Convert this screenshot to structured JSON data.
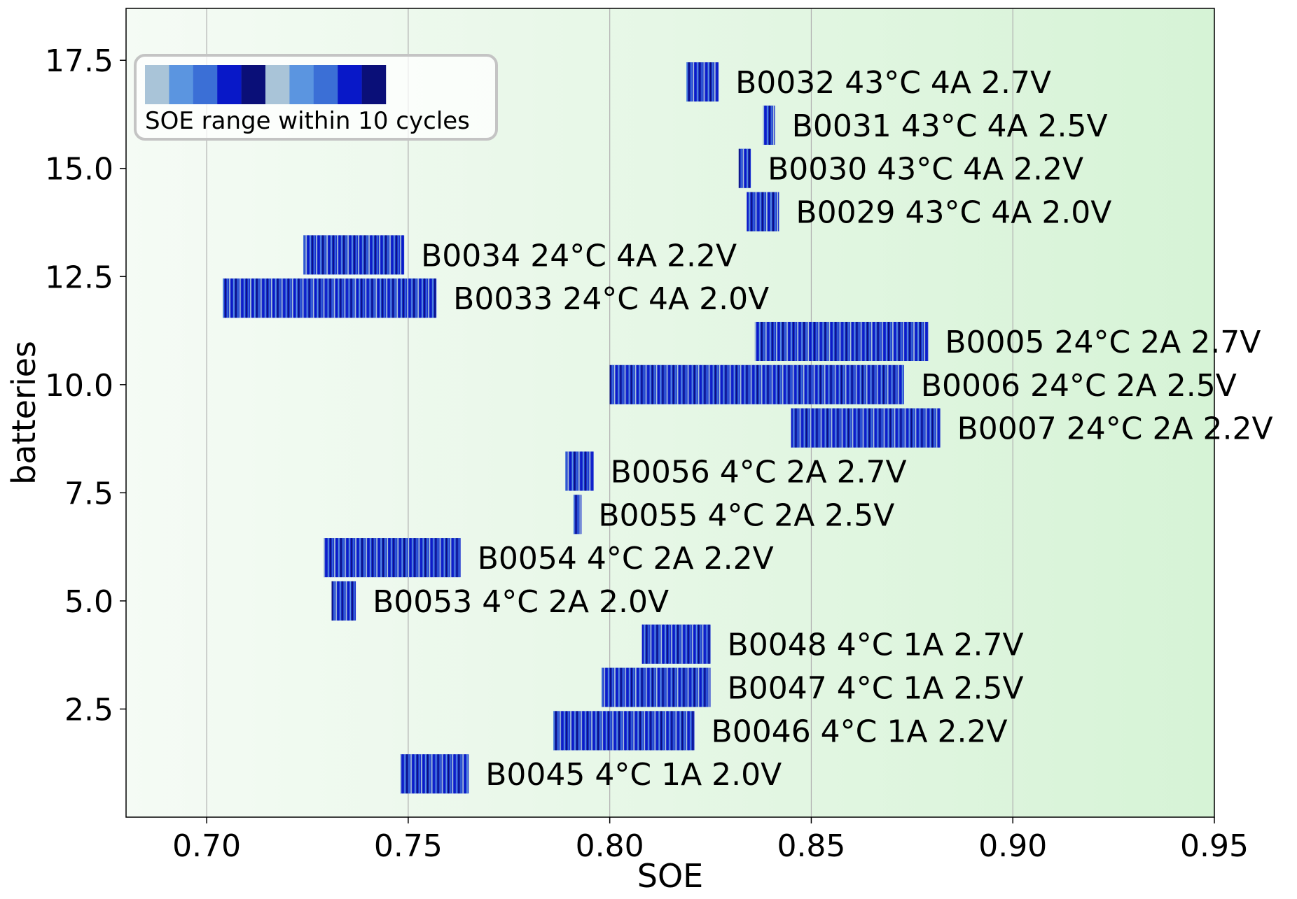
{
  "chart_data": {
    "type": "bar",
    "orientation": "horizontal-range",
    "xlabel": "SOE",
    "ylabel": "batteries",
    "xlim": [
      0.68,
      0.95
    ],
    "ylim": [
      0,
      18.7
    ],
    "xticks": [
      0.7,
      0.75,
      0.8,
      0.85,
      0.9,
      0.95
    ],
    "xtick_labels": [
      "0.70",
      "0.75",
      "0.80",
      "0.85",
      "0.90",
      "0.95"
    ],
    "yticks": [
      2.5,
      5.0,
      7.5,
      10.0,
      12.5,
      15.0,
      17.5
    ],
    "ytick_labels": [
      "2.5",
      "5.0",
      "7.5",
      "10.0",
      "12.5",
      "15.0",
      "17.5"
    ],
    "grid": "x",
    "legend": {
      "label": "SOE range within 10 cycles",
      "placement": "top-left",
      "swatches": [
        "#a9c4d8",
        "#5b95e0",
        "#3b6fd6",
        "#0818c8",
        "#0a0f78",
        "#a9c4d8",
        "#5b95e0",
        "#3b6fd6",
        "#0818c8",
        "#0a0f78"
      ]
    },
    "colors": {
      "background_start": "#f5fbf5",
      "background_end": "#d6f3d6",
      "bar_base": "#1a2fcf",
      "grid": "#b0b0b0"
    },
    "series": [
      {
        "name": "B0045 4°C 1A 2.0V",
        "y": 1,
        "min": 0.748,
        "max": 0.765
      },
      {
        "name": "B0046 4°C 1A 2.2V",
        "y": 2,
        "min": 0.786,
        "max": 0.821
      },
      {
        "name": "B0047 4°C 1A 2.5V",
        "y": 3,
        "min": 0.798,
        "max": 0.825
      },
      {
        "name": "B0048 4°C 1A 2.7V",
        "y": 4,
        "min": 0.808,
        "max": 0.825
      },
      {
        "name": "B0053 4°C 2A 2.0V",
        "y": 5,
        "min": 0.731,
        "max": 0.737
      },
      {
        "name": "B0054 4°C 2A 2.2V",
        "y": 6,
        "min": 0.729,
        "max": 0.763
      },
      {
        "name": "B0055 4°C 2A 2.5V",
        "y": 7,
        "min": 0.791,
        "max": 0.793
      },
      {
        "name": "B0056 4°C 2A 2.7V",
        "y": 8,
        "min": 0.789,
        "max": 0.796
      },
      {
        "name": "B0007 24°C 2A 2.2V",
        "y": 9,
        "min": 0.845,
        "max": 0.882
      },
      {
        "name": "B0006 24°C 2A 2.5V",
        "y": 10,
        "min": 0.8,
        "max": 0.873
      },
      {
        "name": "B0005 24°C 2A 2.7V",
        "y": 11,
        "min": 0.836,
        "max": 0.879
      },
      {
        "name": "B0033 24°C 4A 2.0V",
        "y": 12,
        "min": 0.704,
        "max": 0.757
      },
      {
        "name": "B0034 24°C 4A 2.2V",
        "y": 13,
        "min": 0.724,
        "max": 0.749
      },
      {
        "name": "B0029 43°C 4A 2.0V",
        "y": 14,
        "min": 0.834,
        "max": 0.842
      },
      {
        "name": "B0030 43°C 4A 2.2V",
        "y": 15,
        "min": 0.832,
        "max": 0.835
      },
      {
        "name": "B0031 43°C 4A 2.5V",
        "y": 16,
        "min": 0.838,
        "max": 0.841
      },
      {
        "name": "B0032 43°C 4A 2.7V",
        "y": 17,
        "min": 0.819,
        "max": 0.827
      }
    ]
  }
}
